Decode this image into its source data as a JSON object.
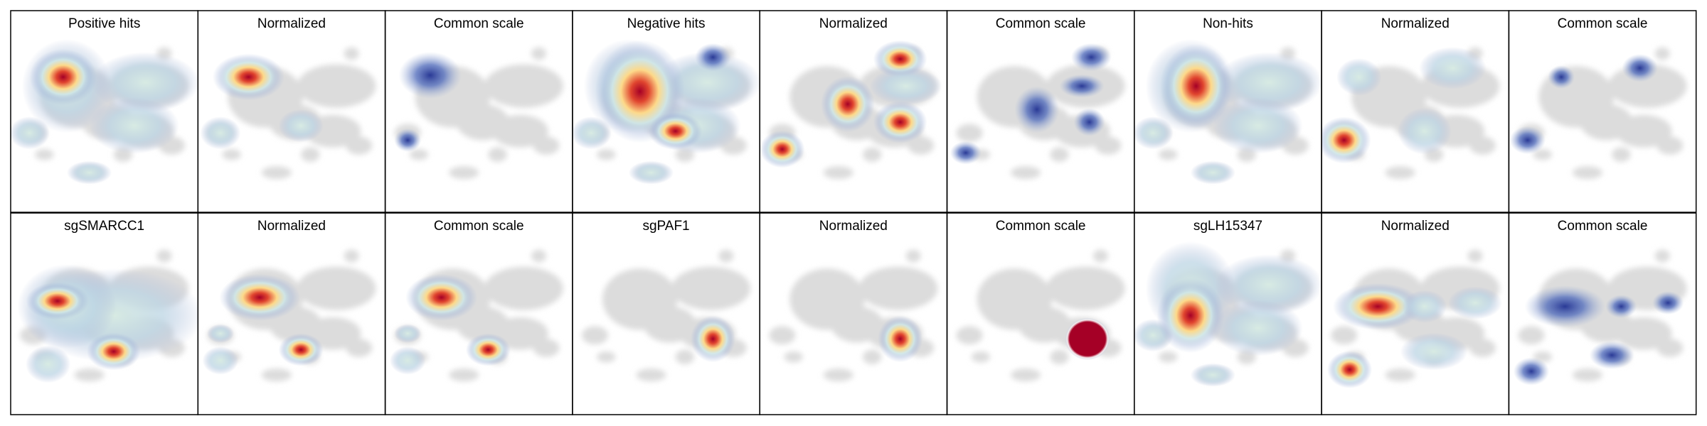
{
  "panels": [
    {
      "title": "Positive hits"
    },
    {
      "title": "Normalized"
    },
    {
      "title": "Common scale"
    },
    {
      "title": "Negative hits"
    },
    {
      "title": "Normalized"
    },
    {
      "title": "Common scale"
    },
    {
      "title": "Non-hits"
    },
    {
      "title": "Normalized"
    },
    {
      "title": "Common scale"
    },
    {
      "title": "sgSMARCC1"
    },
    {
      "title": "Normalized"
    },
    {
      "title": "Common scale"
    },
    {
      "title": "sgPAF1"
    },
    {
      "title": "Normalized"
    },
    {
      "title": "Common scale"
    },
    {
      "title": "sgLH15347"
    },
    {
      "title": "Normalized"
    },
    {
      "title": "Common scale"
    }
  ]
}
